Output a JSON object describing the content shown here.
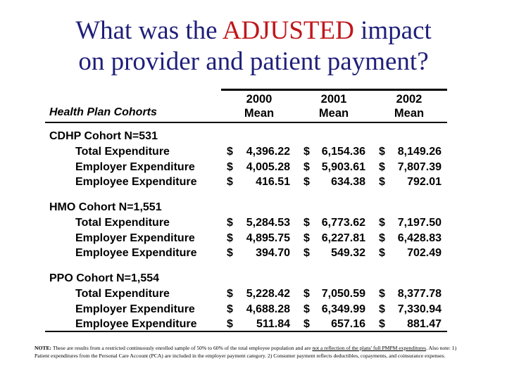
{
  "title": {
    "line1_before": "What was the ",
    "line1_accent": "ADJUSTED",
    "line1_after": " impact",
    "line2": "on provider and patient payment?",
    "accent_color": "#c0171c",
    "title_color": "#1f1f7a"
  },
  "table": {
    "plan_header": "Health Plan Cohorts",
    "columns": [
      {
        "year": "2000",
        "stat": "Mean"
      },
      {
        "year": "2001",
        "stat": "Mean"
      },
      {
        "year": "2002",
        "stat": "Mean"
      }
    ],
    "currency_symbol": "$",
    "cohorts": [
      {
        "name": "CDHP Cohort N=531",
        "rows": [
          {
            "label": "Total Expenditure",
            "values": [
              "4,396.22",
              "6,154.36",
              "8,149.26"
            ]
          },
          {
            "label": "Employer Expenditure",
            "values": [
              "4,005.28",
              "5,903.61",
              "7,807.39"
            ]
          },
          {
            "label": "Employee Expenditure",
            "values": [
              "416.51",
              "634.38",
              "792.01"
            ]
          }
        ]
      },
      {
        "name": "HMO Cohort N=1,551",
        "rows": [
          {
            "label": "Total Expenditure",
            "values": [
              "5,284.53",
              "6,773.62",
              "7,197.50"
            ]
          },
          {
            "label": "Employer Expenditure",
            "values": [
              "4,895.75",
              "6,227.81",
              "6,428.83"
            ]
          },
          {
            "label": "Employee Expenditure",
            "values": [
              "394.70",
              "549.32",
              "702.49"
            ]
          }
        ]
      },
      {
        "name": "PPO Cohort N=1,554",
        "rows": [
          {
            "label": "Total Expenditure",
            "values": [
              "5,228.42",
              "7,050.59",
              "8,377.78"
            ]
          },
          {
            "label": "Employer Expenditure",
            "values": [
              "4,688.28",
              "6,349.99",
              "7,330.94"
            ]
          },
          {
            "label": "Employee Expenditure",
            "values": [
              "511.84",
              "657.16",
              "881.47"
            ]
          }
        ]
      }
    ]
  },
  "note": {
    "label": "NOTE:",
    "text1": " These are results from a restricted continuously enrolled sample of 50% to 60% of the total employee population and are ",
    "underlined": "not a reflection of the plans' full PMPM expenditures",
    "text2": ".  Also note: 1) Patient expenditures from the Personal Care Account (PCA) are included in the employer payment category. 2) Consumer payment reflects deductibles, copayments, and coinsurance expenses."
  }
}
